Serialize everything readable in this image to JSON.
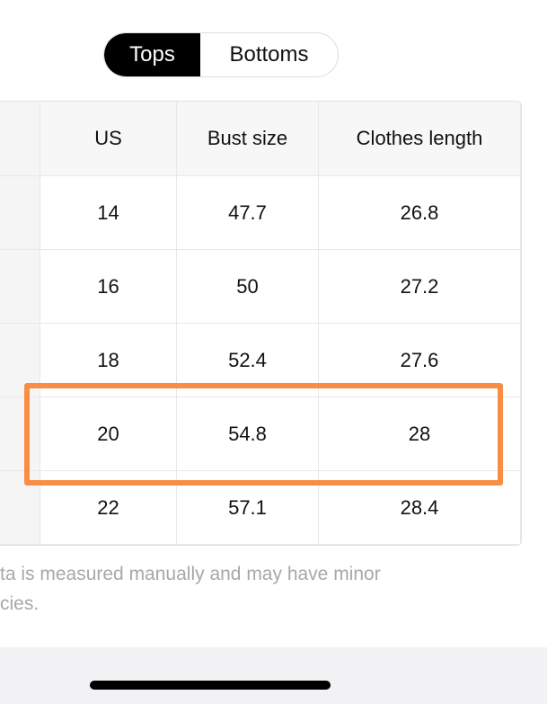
{
  "tabs": [
    "Tops",
    "Bottoms"
  ],
  "table": {
    "headers": [
      "US",
      "Bust size",
      "Clothes length"
    ],
    "rows": [
      [
        "14",
        "47.7",
        "26.8"
      ],
      [
        "16",
        "50",
        "27.2"
      ],
      [
        "18",
        "52.4",
        "27.6"
      ],
      [
        "20",
        "54.8",
        "28"
      ],
      [
        "22",
        "57.1",
        "28.4"
      ]
    ]
  },
  "note": [
    "ta is measured manually and may have minor",
    "cies."
  ]
}
